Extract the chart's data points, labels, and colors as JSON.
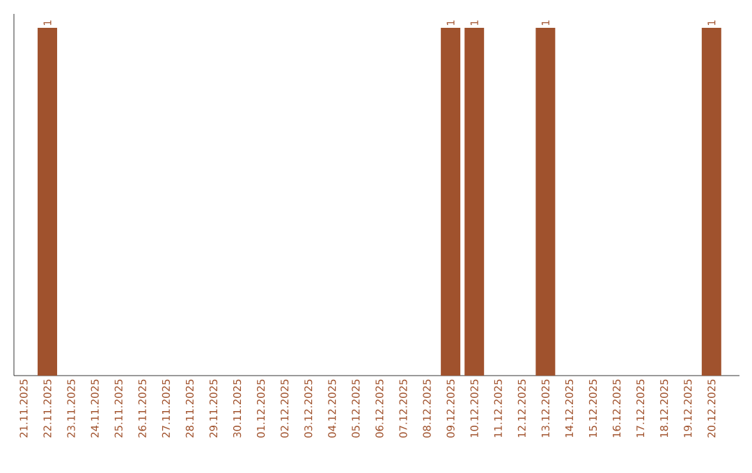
{
  "chart_data": {
    "type": "bar",
    "categories": [
      "21.11.2025",
      "22.11.2025",
      "23.11.2025",
      "24.11.2025",
      "25.11.2025",
      "26.11.2025",
      "27.11.2025",
      "28.11.2025",
      "29.11.2025",
      "30.11.2025",
      "01.12.2025",
      "02.12.2025",
      "03.12.2025",
      "04.12.2025",
      "05.12.2025",
      "06.12.2025",
      "07.12.2025",
      "08.12.2025",
      "09.12.2025",
      "10.12.2025",
      "11.12.2025",
      "12.12.2025",
      "13.12.2025",
      "14.12.2025",
      "15.12.2025",
      "16.12.2025",
      "17.12.2025",
      "18.12.2025",
      "19.12.2025",
      "20.12.2025"
    ],
    "values": [
      0,
      1,
      0,
      0,
      0,
      0,
      0,
      0,
      0,
      0,
      0,
      0,
      0,
      0,
      0,
      0,
      0,
      0,
      1,
      1,
      0,
      0,
      1,
      0,
      0,
      0,
      0,
      0,
      0,
      1
    ],
    "value_labels": [
      null,
      "1",
      null,
      null,
      null,
      null,
      null,
      null,
      null,
      null,
      null,
      null,
      null,
      null,
      null,
      null,
      null,
      null,
      "1",
      "1",
      null,
      null,
      "1",
      null,
      null,
      null,
      null,
      null,
      null,
      "1"
    ],
    "color": "#a0522d",
    "tick_labels": "x"
  }
}
